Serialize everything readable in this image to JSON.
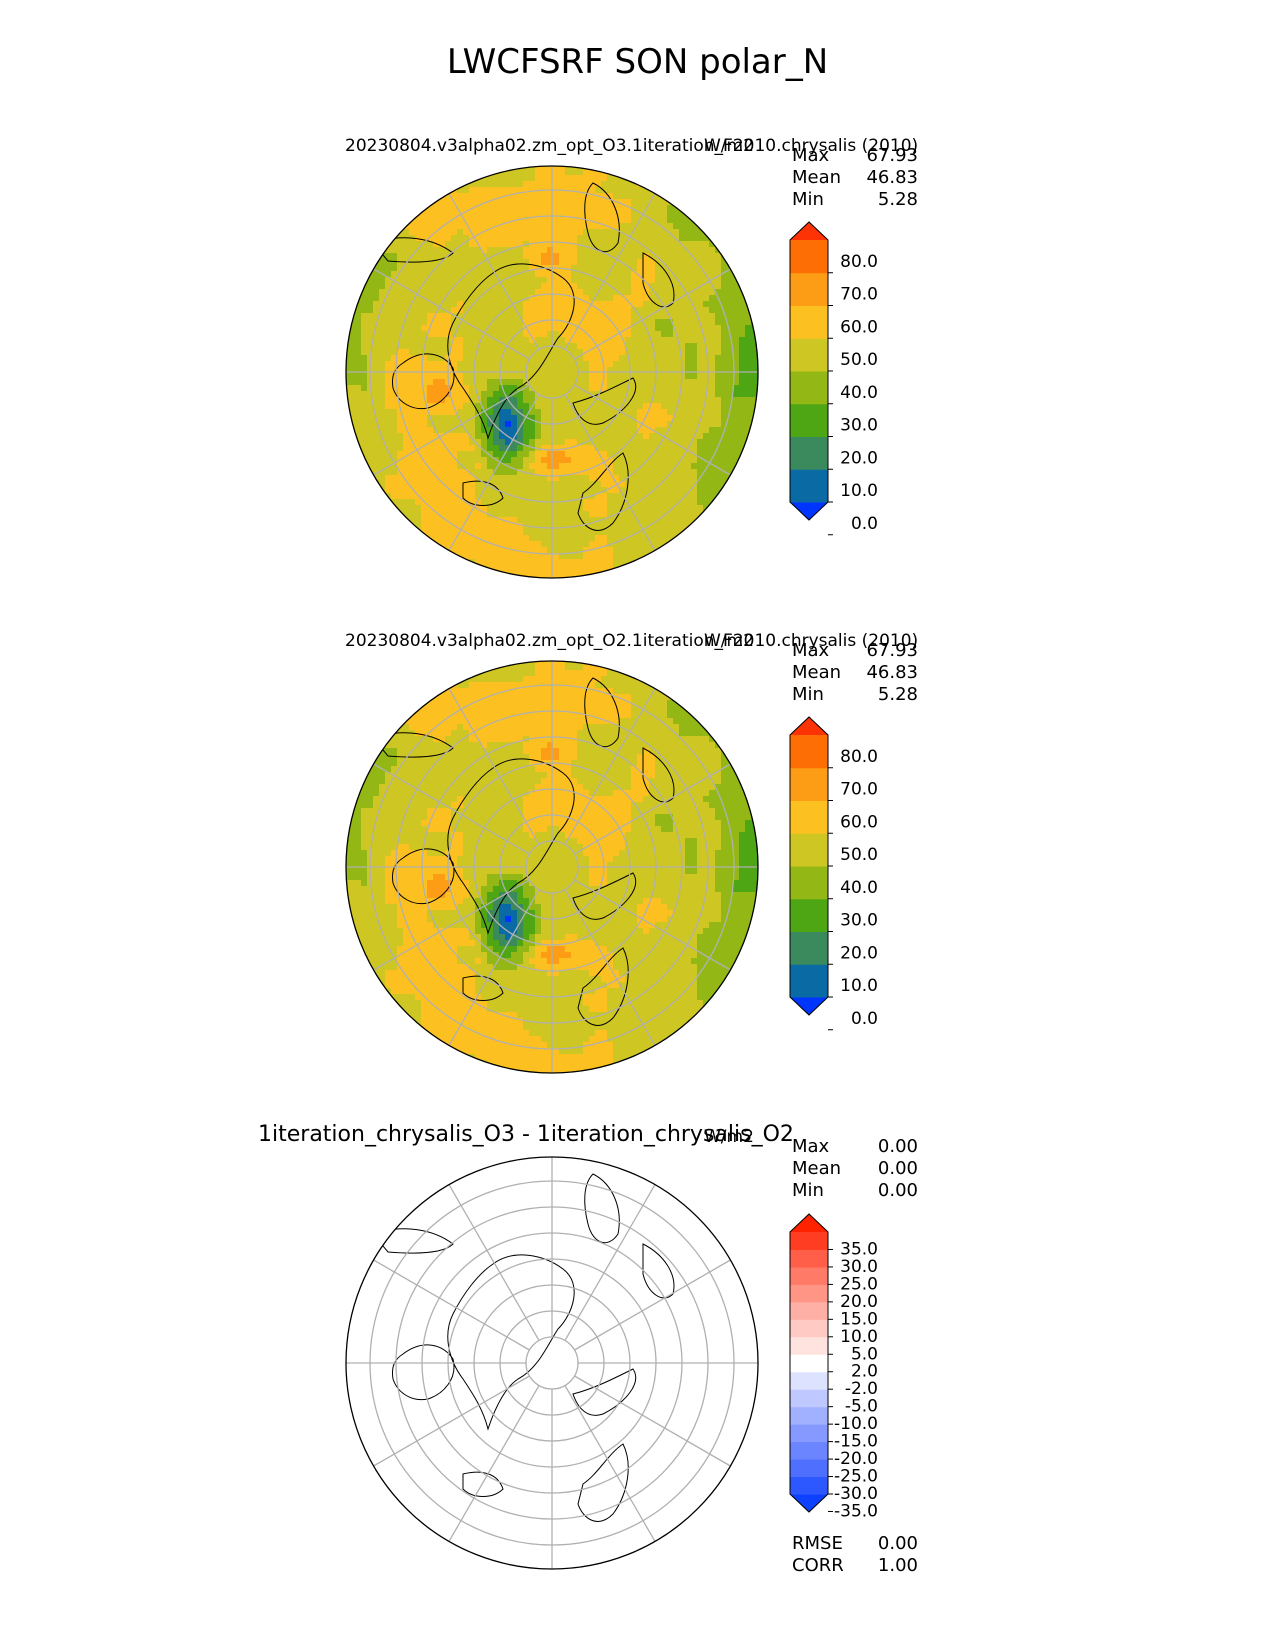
{
  "title": "LWCFSRF SON polar_N",
  "panels": [
    {
      "id": "test",
      "title": "20230804.v3alpha02.zm_opt_O3.1iteration_F2010.chrysalis (2010)",
      "units": "W/m2",
      "stats": {
        "max_label": "Max",
        "max": "67.93",
        "mean_label": "Mean",
        "mean": "46.83",
        "min_label": "Min",
        "min": "5.28"
      }
    },
    {
      "id": "ref",
      "title": "20230804.v3alpha02.zm_opt_O2.1iteration_F2010.chrysalis (2010)",
      "units": "W/m2",
      "stats": {
        "max_label": "Max",
        "max": "67.93",
        "mean_label": "Mean",
        "mean": "46.83",
        "min_label": "Min",
        "min": "5.28"
      }
    },
    {
      "id": "diff",
      "title": "1iteration_chrysalis_O3 - 1iteration_chrysalis_O2",
      "units": "W/m2",
      "stats": {
        "max_label": "Max",
        "max": "0.00",
        "mean_label": "Mean",
        "mean": "0.00",
        "min_label": "Min",
        "min": "0.00"
      },
      "metrics": {
        "rmse_label": "RMSE",
        "rmse": "0.00",
        "corr_label": "CORR",
        "corr": "1.00"
      }
    }
  ],
  "chart_data": [
    {
      "type": "heatmap",
      "projection": "north polar stereographic",
      "title": "20230804.v3alpha02.zm_opt_O3.1iteration_F2010.chrysalis (2010)",
      "variable": "LWCFSRF",
      "season": "SON",
      "units": "W/m2",
      "max": 67.93,
      "mean": 46.83,
      "min": 5.28,
      "colorbar_levels": [
        0,
        10,
        20,
        30,
        40,
        50,
        60,
        70,
        80
      ],
      "colorbar_ticks": [
        "80.0",
        "70.0",
        "60.0",
        "50.0",
        "40.0",
        "30.0",
        "20.0",
        "10.0",
        "0.0"
      ],
      "colorbar_colors": [
        "#0035ff",
        "#0a6aa4",
        "#3a8a5e",
        "#4ea614",
        "#93b816",
        "#cec622",
        "#fcc121",
        "#fd9d15",
        "#fd6e05",
        "#fd3306"
      ]
    },
    {
      "type": "heatmap",
      "projection": "north polar stereographic",
      "title": "20230804.v3alpha02.zm_opt_O2.1iteration_F2010.chrysalis (2010)",
      "variable": "LWCFSRF",
      "season": "SON",
      "units": "W/m2",
      "max": 67.93,
      "mean": 46.83,
      "min": 5.28,
      "colorbar_levels": [
        0,
        10,
        20,
        30,
        40,
        50,
        60,
        70,
        80
      ],
      "colorbar_ticks": [
        "80.0",
        "70.0",
        "60.0",
        "50.0",
        "40.0",
        "30.0",
        "20.0",
        "10.0",
        "0.0"
      ],
      "colorbar_colors": [
        "#0035ff",
        "#0a6aa4",
        "#3a8a5e",
        "#4ea614",
        "#93b816",
        "#cec622",
        "#fcc121",
        "#fd9d15",
        "#fd6e05",
        "#fd3306"
      ]
    },
    {
      "type": "heatmap",
      "projection": "north polar stereographic",
      "title": "1iteration_chrysalis_O3 - 1iteration_chrysalis_O2",
      "units": "W/m2",
      "max": 0.0,
      "mean": 0.0,
      "min": 0.0,
      "rmse": 0.0,
      "corr": 1.0,
      "colorbar_levels": [
        -35,
        -30,
        -25,
        -20,
        -15,
        -10,
        -5,
        -2,
        2,
        5,
        10,
        15,
        20,
        25,
        30,
        35
      ],
      "colorbar_ticks": [
        "35.0",
        "30.0",
        "25.0",
        "20.0",
        "15.0",
        "10.0",
        "5.0",
        "2.0",
        "-2.0",
        "-5.0",
        "-10.0",
        "-15.0",
        "-20.0",
        "-25.0",
        "-30.0",
        "-35.0"
      ],
      "colorbar_colors": [
        "#0d40ff",
        "#2e58ff",
        "#4f70ff",
        "#6a85ff",
        "#8599ff",
        "#a2b1ff",
        "#bfc9ff",
        "#dde3ff",
        "#ffffff",
        "#ffe3df",
        "#ffcac3",
        "#ffb0a6",
        "#ff9584",
        "#ff7a67",
        "#ff5f48",
        "#ff3d22",
        "#ff2200"
      ]
    }
  ]
}
